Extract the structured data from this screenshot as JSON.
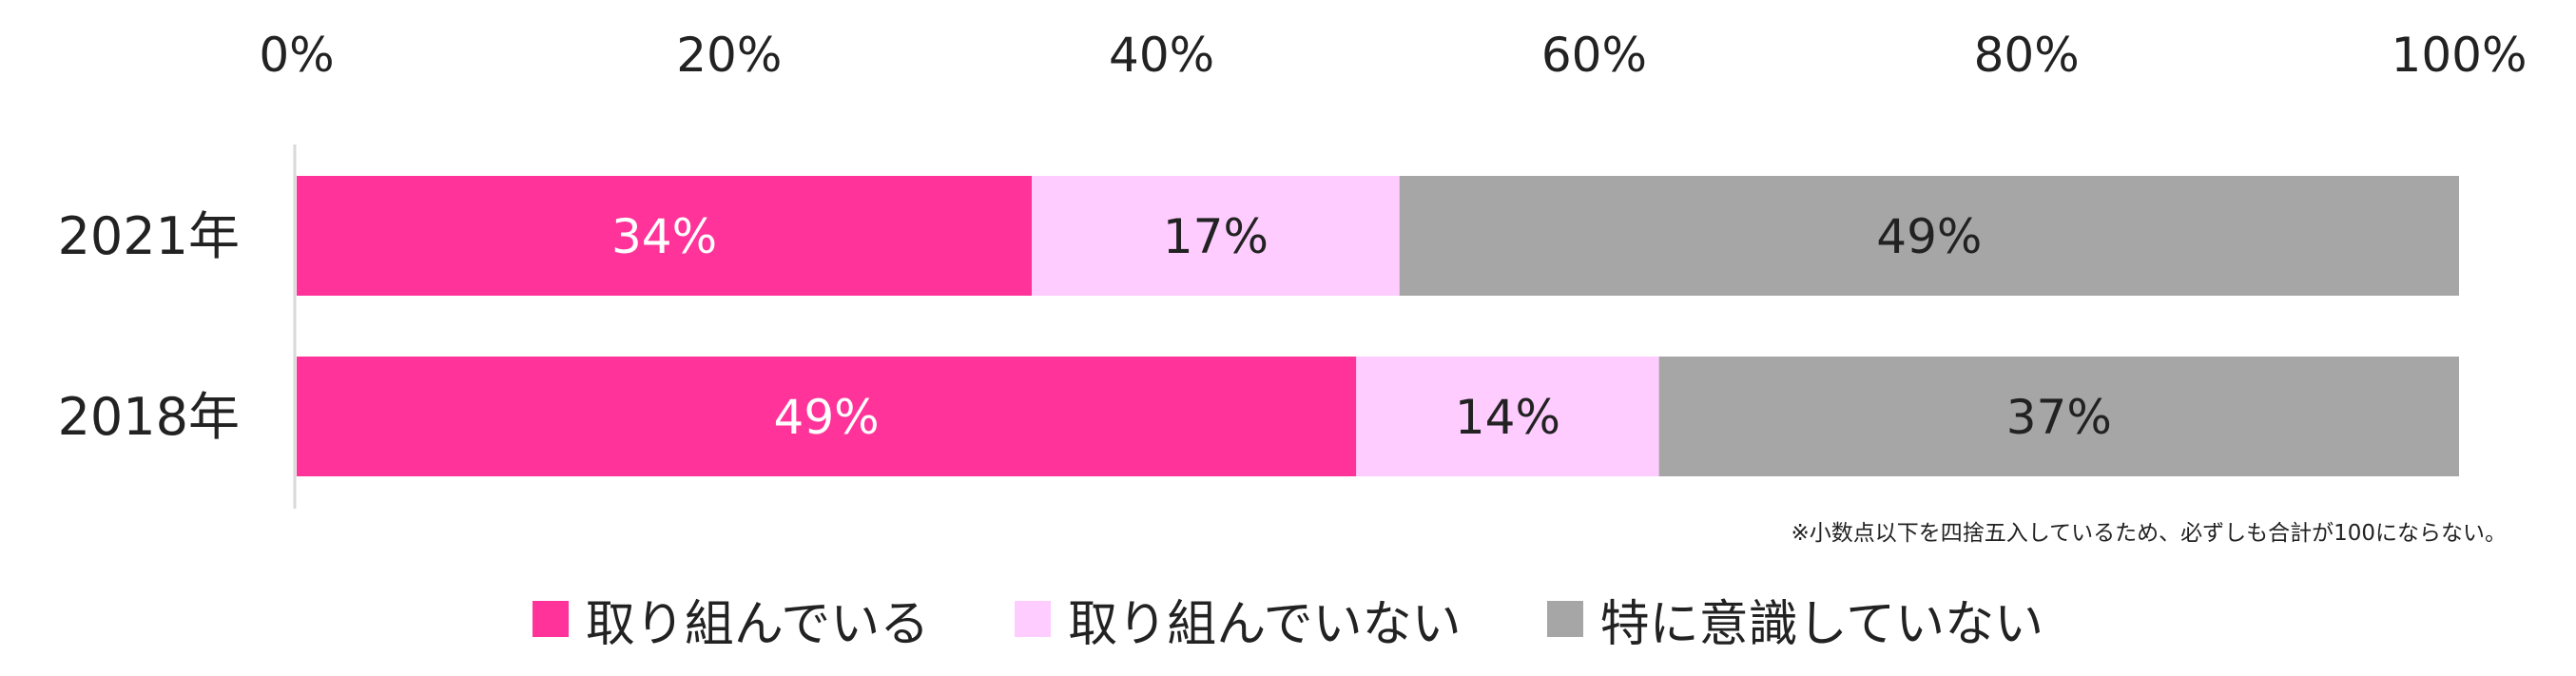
{
  "chart_data": {
    "type": "bar",
    "orientation": "horizontal",
    "stacked": true,
    "categories": [
      "2021年",
      "2018年"
    ],
    "series": [
      {
        "name": "取り組んでいる",
        "values": [
          34,
          49
        ],
        "labels": [
          "34%",
          "49%"
        ],
        "color": "#FF3399",
        "label_color": "#FFFFFF"
      },
      {
        "name": "取り組んでいない",
        "values": [
          17,
          14
        ],
        "labels": [
          "17%",
          "14%"
        ],
        "color": "#FFCCFF",
        "label_color": "#222222"
      },
      {
        "name": "特に意識していない",
        "values": [
          49,
          37
        ],
        "labels": [
          "49%",
          "37%"
        ],
        "color": "#A6A6A6",
        "label_color": "#222222"
      }
    ],
    "xlim": [
      0,
      100
    ],
    "x_ticks": [
      "0%",
      "20%",
      "40%",
      "60%",
      "80%",
      "100%"
    ],
    "x_axis_position": "top",
    "grid": false,
    "legend_position": "bottom",
    "note": "※小数点以下を四捨五入しているため、必ずしも合計が100にならない。"
  }
}
